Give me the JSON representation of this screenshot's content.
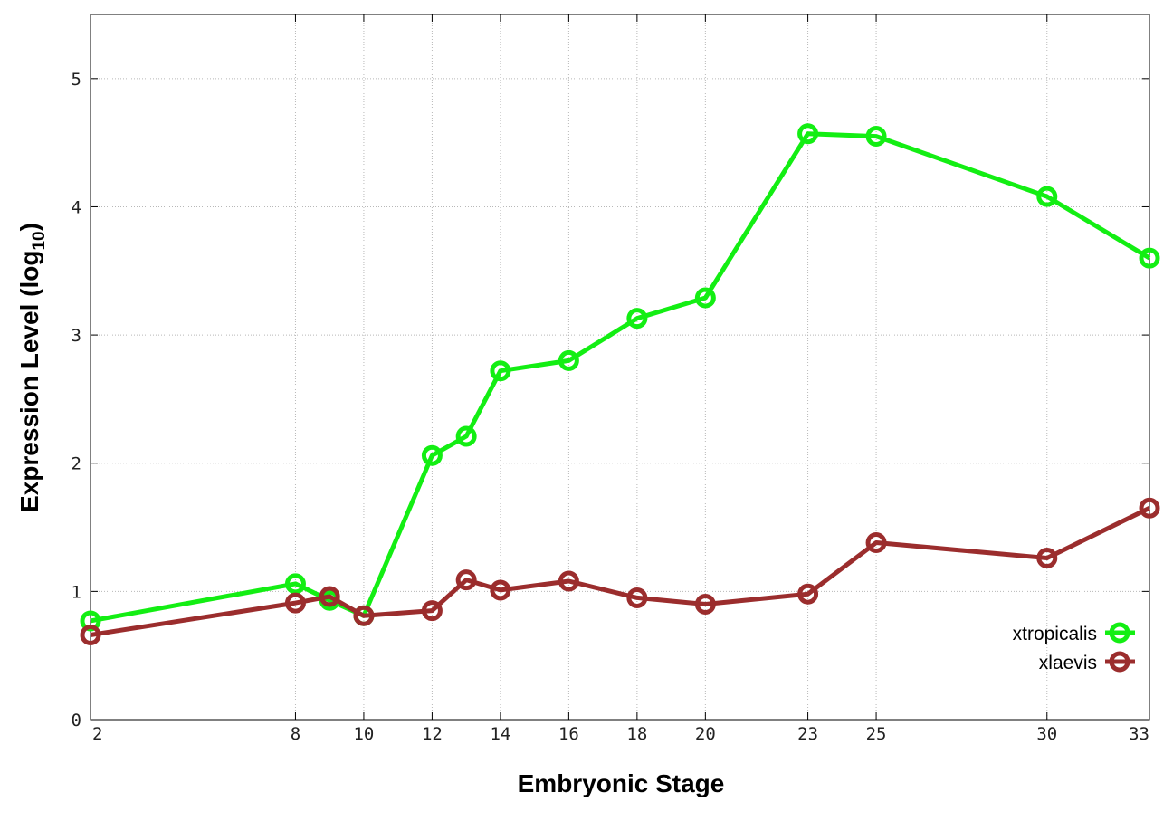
{
  "chart_data": {
    "type": "line",
    "xlabel": "Embryonic Stage",
    "ylabel": "Expression Level (log",
    "ylabel_sub": "10",
    "ylabel_close": ")",
    "xlim": [
      2,
      33
    ],
    "ylim": [
      0,
      5.5
    ],
    "x_ticks": [
      2,
      8,
      10,
      12,
      14,
      16,
      18,
      20,
      23,
      25,
      30,
      33
    ],
    "x_tick_labels": [
      "2",
      "8",
      "10",
      "12",
      "14",
      "16",
      "18",
      "20",
      "23",
      "25",
      "30",
      "33"
    ],
    "y_ticks": [
      0,
      1,
      2,
      3,
      4,
      5
    ],
    "y_tick_labels": [
      "0",
      "1",
      "2",
      "3",
      "4",
      "5"
    ],
    "grid": true,
    "legend_position": "bottom-right",
    "x": [
      2,
      8,
      9,
      10,
      12,
      13,
      14,
      16,
      18,
      20,
      23,
      25,
      30,
      33
    ],
    "series": [
      {
        "name": "xtropicalis",
        "color": "#13ee13",
        "values": [
          0.77,
          1.06,
          0.93,
          0.81,
          2.06,
          2.21,
          2.72,
          2.8,
          3.13,
          3.29,
          4.57,
          4.55,
          4.08,
          3.6
        ]
      },
      {
        "name": "xlaevis",
        "color": "#9b2d2d",
        "values": [
          0.66,
          0.91,
          0.96,
          0.81,
          0.85,
          1.09,
          1.01,
          1.08,
          0.95,
          0.9,
          0.98,
          1.38,
          1.26,
          1.65
        ]
      }
    ]
  }
}
